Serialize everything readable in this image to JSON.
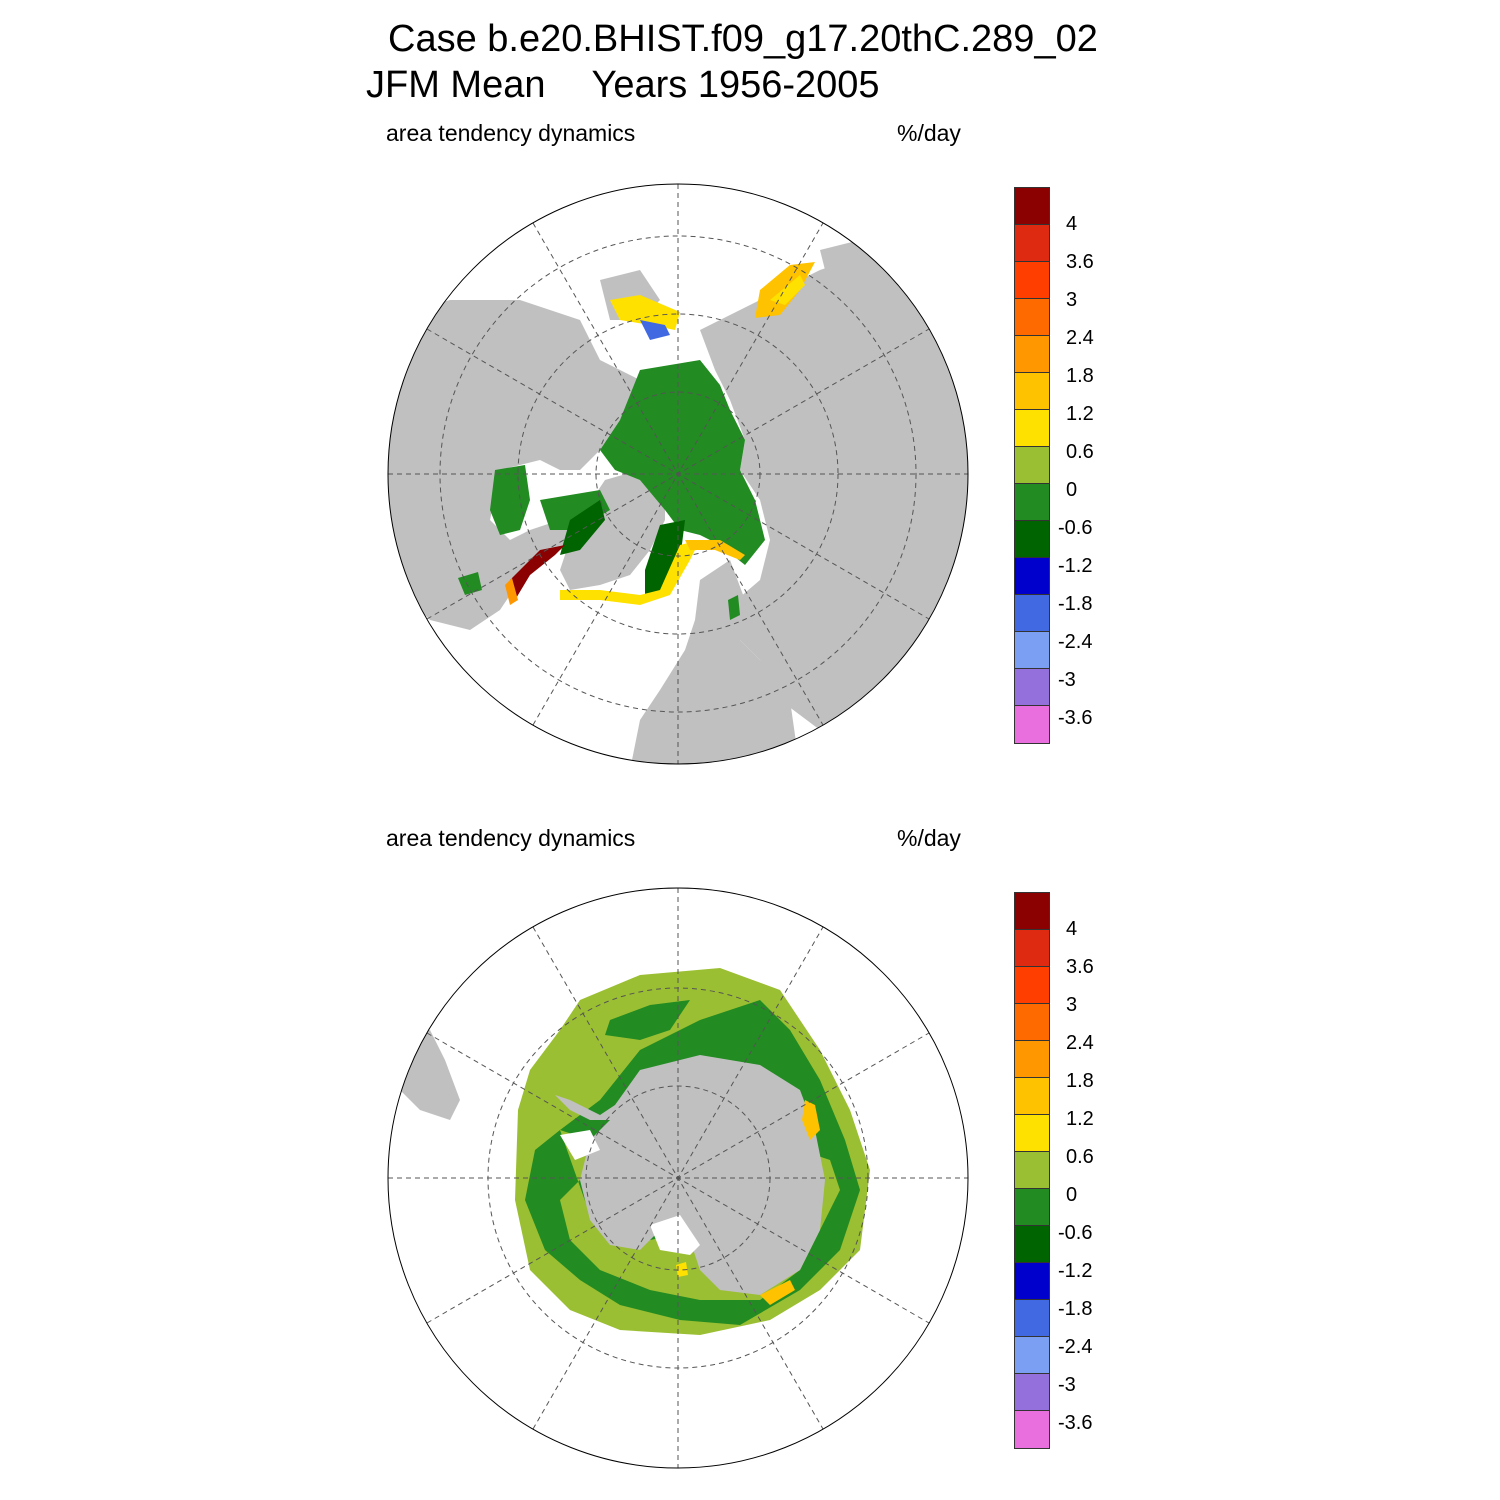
{
  "title": {
    "line1": "Case b.e20.BHIST.f09_g17.20thC.289_02",
    "season": "JFM Mean",
    "years": "Years 1956-2005"
  },
  "panels": [
    {
      "name": "north",
      "left_label": "area tendency dynamics",
      "right_label": "%/day"
    },
    {
      "name": "south",
      "left_label": "area tendency dynamics",
      "right_label": "%/day"
    }
  ],
  "colorbar": {
    "colors": [
      "#8b0000",
      "#dd2a10",
      "#ff3e00",
      "#ff6a00",
      "#ff9700",
      "#ffc200",
      "#ffe100",
      "#9bbf32",
      "#228b22",
      "#006400",
      "#0000cd",
      "#4169e1",
      "#7b9ff2",
      "#9370db",
      "#ea6fde"
    ],
    "labels": [
      "4",
      "3.6",
      "3",
      "2.4",
      "1.8",
      "1.2",
      "0.6",
      "0",
      "-0.6",
      "-1.2",
      "-1.8",
      "-2.4",
      "-3",
      "-3.6"
    ]
  },
  "map_colors": {
    "land": "#c0c0c0",
    "ocean": "#ffffff"
  }
}
